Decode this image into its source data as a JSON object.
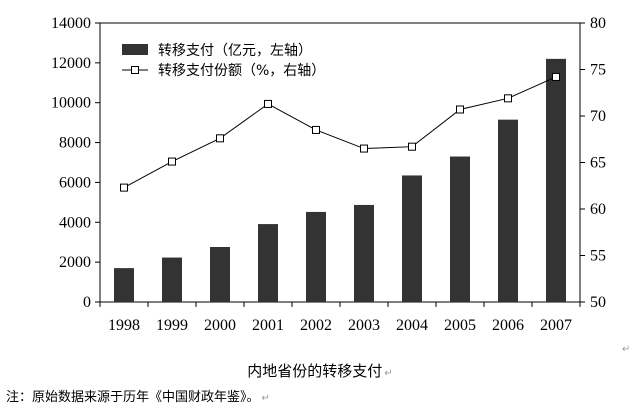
{
  "chart_data": {
    "type": "bar",
    "categories": [
      "1998",
      "1999",
      "2000",
      "2001",
      "2002",
      "2003",
      "2004",
      "2005",
      "2006",
      "2007"
    ],
    "series": [
      {
        "name": "转移支付（亿元，左轴）",
        "type": "bar",
        "axis": "left",
        "color": "#333333",
        "values": [
          1700,
          2230,
          2760,
          3910,
          4520,
          4870,
          6350,
          7300,
          9150,
          12200
        ]
      },
      {
        "name": "转移支付份额（%，右轴）",
        "type": "line",
        "axis": "right",
        "color": "#000000",
        "values": [
          62.3,
          65.1,
          67.6,
          71.3,
          68.5,
          66.5,
          66.7,
          70.7,
          71.9,
          74.2
        ]
      }
    ],
    "y_left": {
      "min": 0,
      "max": 14000,
      "step": 2000
    },
    "y_right": {
      "min": 50,
      "max": 80,
      "step": 5
    },
    "legend_position": "top-left",
    "grid": false
  },
  "caption": "内地省份的转移支付",
  "note": "注：原始数据来源于历年《中国财政年鉴》。",
  "edit_mark": "↵"
}
